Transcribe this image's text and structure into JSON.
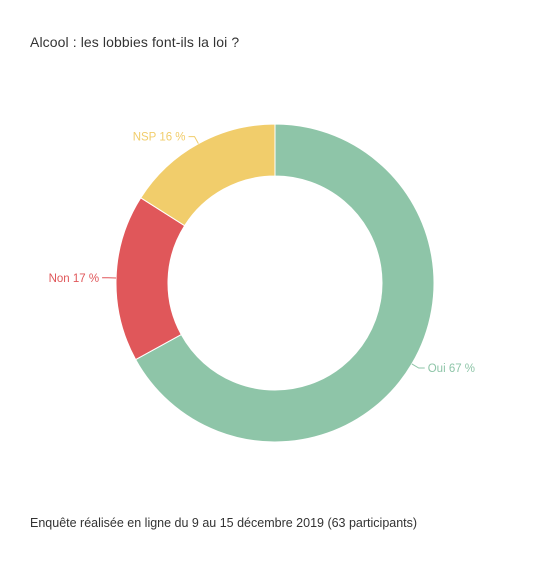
{
  "chart_data": {
    "type": "pie",
    "title": "Alcool : les lobbies font-ils la loi ?",
    "footer": "Enquête réalisée en ligne du 9 au 15 décembre 2019 (63 participants)",
    "unit": "%",
    "slices": [
      {
        "label": "Oui",
        "value": 67,
        "display": "Oui 67 %",
        "color": "#8ec5a8"
      },
      {
        "label": "Non",
        "value": 17,
        "display": "Non 17 %",
        "color": "#e0575a"
      },
      {
        "label": "NSP",
        "value": 16,
        "display": "NSP 16 %",
        "color": "#f1cd6b"
      }
    ]
  }
}
